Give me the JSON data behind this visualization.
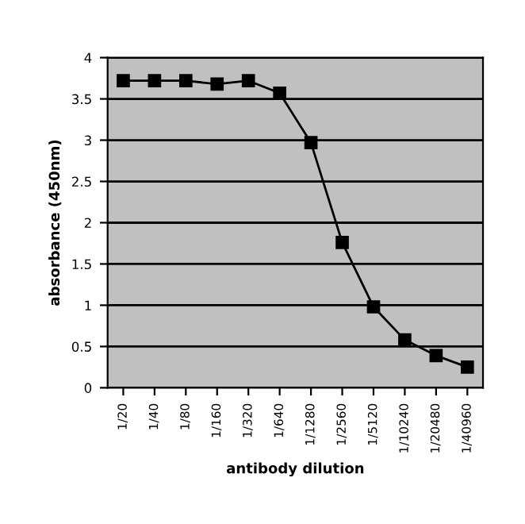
{
  "chart_data": {
    "type": "line",
    "categories": [
      "1/20",
      "1/40",
      "1/80",
      "1/160",
      "1/320",
      "1/640",
      "1/1280",
      "1/2560",
      "1/5120",
      "1/10240",
      "1/20480",
      "1/40960"
    ],
    "series": [
      {
        "color": "#000000",
        "values": [
          3.72,
          3.72,
          3.72,
          3.68,
          3.72,
          3.57,
          2.97,
          1.76,
          0.98,
          0.58,
          0.39,
          0.25
        ]
      }
    ],
    "xlabel": "antibody dilution",
    "ylabel": "absorbance (450nm)",
    "ylim": [
      0,
      4
    ],
    "yticks": [
      0,
      0.5,
      1,
      1.5,
      2,
      2.5,
      3,
      3.5,
      4
    ],
    "grid": "y",
    "legend": false,
    "marker": "square",
    "line_style": "solid"
  }
}
